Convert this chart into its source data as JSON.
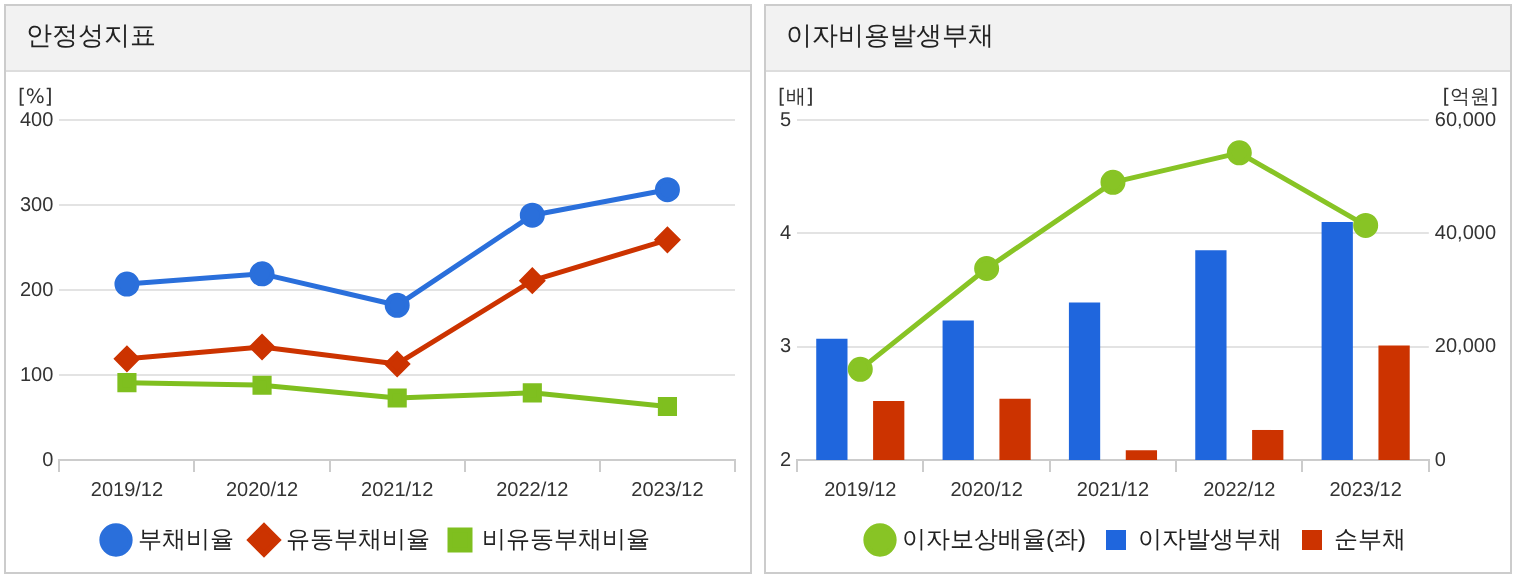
{
  "chart_data": [
    {
      "type": "line",
      "title": "안정성지표",
      "ylabel": "[%]",
      "categories": [
        "2019/12",
        "2020/12",
        "2021/12",
        "2022/12",
        "2023/12"
      ],
      "series": [
        {
          "name": "부채비율",
          "color": "#2a6fdb",
          "marker": "circle",
          "values": [
            207,
            219,
            182,
            288,
            318
          ]
        },
        {
          "name": "유동부채비율",
          "color": "#cc3300",
          "marker": "diamond",
          "values": [
            119,
            133,
            113,
            211,
            259
          ]
        },
        {
          "name": "비유동부채비율",
          "color": "#7fbf1f",
          "marker": "square",
          "values": [
            91,
            88,
            73,
            79,
            63
          ]
        }
      ],
      "ylim": [
        0,
        400
      ],
      "yticks": [
        0,
        100,
        200,
        300,
        400
      ],
      "grid": "y",
      "legend": "bottom"
    },
    {
      "type": "bar",
      "title": "이자비용발생부채",
      "ylabel": "[배]",
      "y2label": "[억원]",
      "categories": [
        "2019/12",
        "2020/12",
        "2021/12",
        "2022/12",
        "2023/12"
      ],
      "series": [
        {
          "name": "이자발생부채",
          "color": "#1f66dd",
          "axis": "y2",
          "values": [
            21400,
            24600,
            27800,
            37000,
            42000
          ]
        },
        {
          "name": "순부채",
          "color": "#cc3300",
          "axis": "y2",
          "values": [
            10400,
            10800,
            1700,
            5300,
            20200
          ]
        },
        {
          "name": "이자보상배율(좌)",
          "type": "line",
          "color": "#88c425",
          "marker": "circle",
          "values": [
            2.8,
            3.69,
            4.45,
            4.71,
            4.07
          ]
        }
      ],
      "ylim": [
        2,
        5
      ],
      "yticks": [
        2,
        3,
        4,
        5
      ],
      "y2lim": [
        0,
        60000
      ],
      "y2ticks": [
        {
          "value": 0,
          "label": "0"
        },
        {
          "value": 20000,
          "label": "20,000"
        },
        {
          "value": 40000,
          "label": "40,000"
        },
        {
          "value": 60000,
          "label": "60,000"
        }
      ],
      "grid": "y",
      "legend": "bottom"
    }
  ]
}
